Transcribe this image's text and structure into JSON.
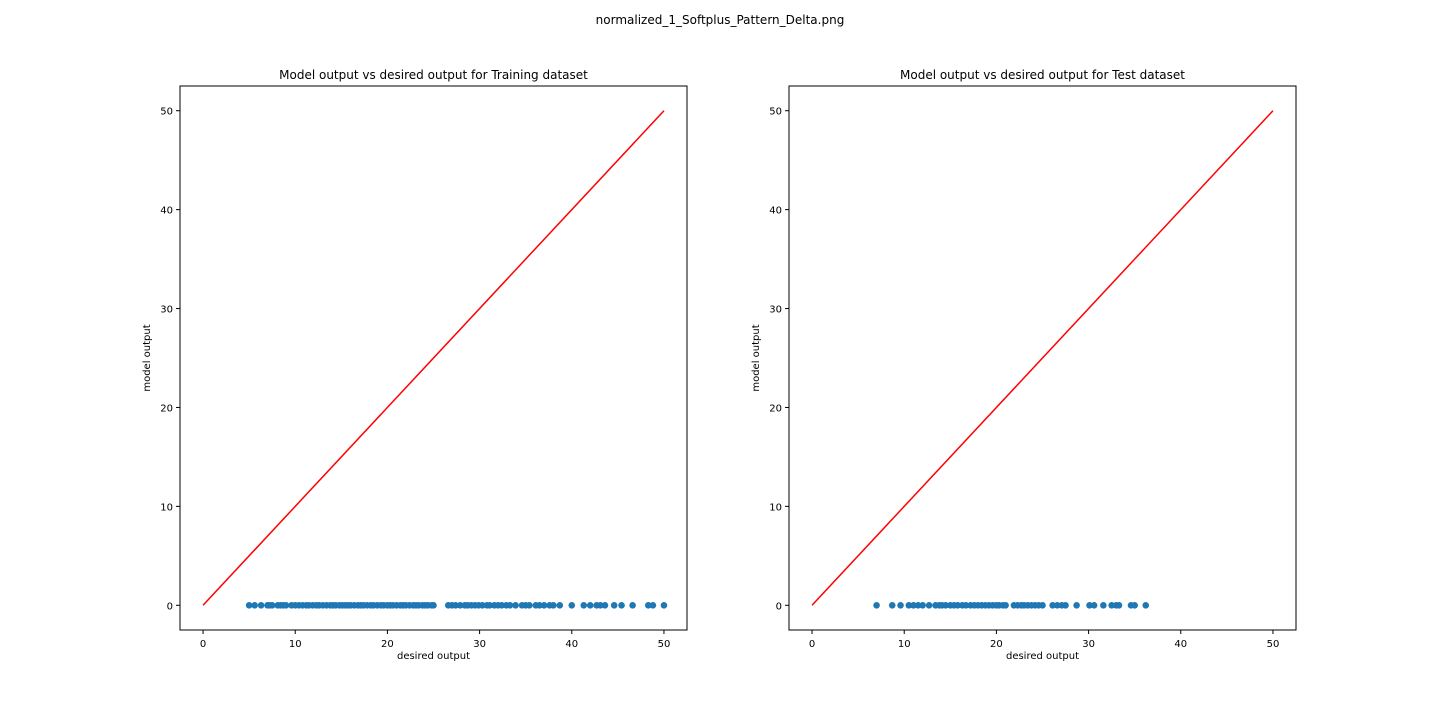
{
  "figure_title": "normalized_1_Softplus_Pattern_Delta.png",
  "colors": {
    "scatter": "#1f77b4",
    "line": "#ff0000",
    "axes": "#000000",
    "background": "#ffffff"
  },
  "chart_data": [
    {
      "type": "scatter",
      "title": "Model output vs desired output for Training dataset",
      "xlabel": "desired output",
      "ylabel": "model output",
      "xlim": [
        -2.5,
        52.5
      ],
      "ylim": [
        -2.5,
        52.5
      ],
      "xticks": [
        0,
        10,
        20,
        30,
        40,
        50
      ],
      "yticks": [
        0,
        10,
        20,
        30,
        40,
        50
      ],
      "grid": false,
      "series": [
        {
          "kind": "scatter",
          "x": [
            5.0,
            5.6,
            6.3,
            7.0,
            7.2,
            7.5,
            8.1,
            8.4,
            8.7,
            9.0,
            9.6,
            10.0,
            10.4,
            10.8,
            11.2,
            11.5,
            11.9,
            12.3,
            12.6,
            13.0,
            13.4,
            13.8,
            14.1,
            14.4,
            14.8,
            15.1,
            15.4,
            15.7,
            16.0,
            16.4,
            16.8,
            17.1,
            17.4,
            17.8,
            18.2,
            18.5,
            18.9,
            19.3,
            19.6,
            20.0,
            20.3,
            20.6,
            21.0,
            21.4,
            21.7,
            22.0,
            22.4,
            22.8,
            23.1,
            23.4,
            23.8,
            24.1,
            24.4,
            24.8,
            25.0,
            26.6,
            27.0,
            27.4,
            27.9,
            28.4,
            28.7,
            29.1,
            29.5,
            29.9,
            30.3,
            30.8,
            31.1,
            31.6,
            32.0,
            32.4,
            32.9,
            33.3,
            33.9,
            34.6,
            35.0,
            35.4,
            36.1,
            36.5,
            37.0,
            37.6,
            38.0,
            38.7,
            40.0,
            41.3,
            42.0,
            42.7,
            43.1,
            43.6,
            44.6,
            45.4,
            46.6,
            48.3,
            48.8,
            50.0
          ],
          "y": [
            0,
            0,
            0,
            0,
            0,
            0,
            0,
            0,
            0,
            0,
            0,
            0,
            0,
            0,
            0,
            0,
            0,
            0,
            0,
            0,
            0,
            0,
            0,
            0,
            0,
            0,
            0,
            0,
            0,
            0,
            0,
            0,
            0,
            0,
            0,
            0,
            0,
            0,
            0,
            0,
            0,
            0,
            0,
            0,
            0,
            0,
            0,
            0,
            0,
            0,
            0,
            0,
            0,
            0,
            0,
            0,
            0,
            0,
            0,
            0,
            0,
            0,
            0,
            0,
            0,
            0,
            0,
            0,
            0,
            0,
            0,
            0,
            0,
            0,
            0,
            0,
            0,
            0,
            0,
            0,
            0,
            0,
            0,
            0,
            0,
            0,
            0,
            0,
            0,
            0,
            0,
            0,
            0,
            0
          ]
        },
        {
          "kind": "line",
          "x": [
            0,
            50
          ],
          "y": [
            0,
            50
          ]
        }
      ]
    },
    {
      "type": "scatter",
      "title": "Model output vs desired output for Test dataset",
      "xlabel": "desired output",
      "ylabel": "model output",
      "xlim": [
        -2.5,
        52.5
      ],
      "ylim": [
        -2.5,
        52.5
      ],
      "xticks": [
        0,
        10,
        20,
        30,
        40,
        50
      ],
      "yticks": [
        0,
        10,
        20,
        30,
        40,
        50
      ],
      "grid": false,
      "series": [
        {
          "kind": "scatter",
          "x": [
            7.0,
            8.7,
            9.6,
            10.5,
            11.0,
            11.5,
            12.0,
            12.7,
            13.4,
            13.8,
            14.1,
            14.5,
            15.0,
            15.4,
            15.8,
            16.3,
            16.7,
            17.2,
            17.6,
            18.0,
            18.4,
            18.8,
            19.2,
            19.6,
            20.0,
            20.3,
            20.7,
            21.0,
            21.9,
            22.3,
            22.7,
            23.0,
            23.4,
            23.8,
            24.2,
            24.6,
            25.0,
            26.1,
            26.6,
            27.1,
            27.5,
            28.7,
            30.1,
            30.6,
            31.6,
            32.5,
            33.0,
            33.3,
            34.6,
            35.0,
            36.2
          ],
          "y": [
            0,
            0,
            0,
            0,
            0,
            0,
            0,
            0,
            0,
            0,
            0,
            0,
            0,
            0,
            0,
            0,
            0,
            0,
            0,
            0,
            0,
            0,
            0,
            0,
            0,
            0,
            0,
            0,
            0,
            0,
            0,
            0,
            0,
            0,
            0,
            0,
            0,
            0,
            0,
            0,
            0,
            0,
            0,
            0,
            0,
            0,
            0,
            0,
            0,
            0,
            0
          ]
        },
        {
          "kind": "line",
          "x": [
            0,
            50
          ],
          "y": [
            0,
            50
          ]
        }
      ]
    }
  ]
}
